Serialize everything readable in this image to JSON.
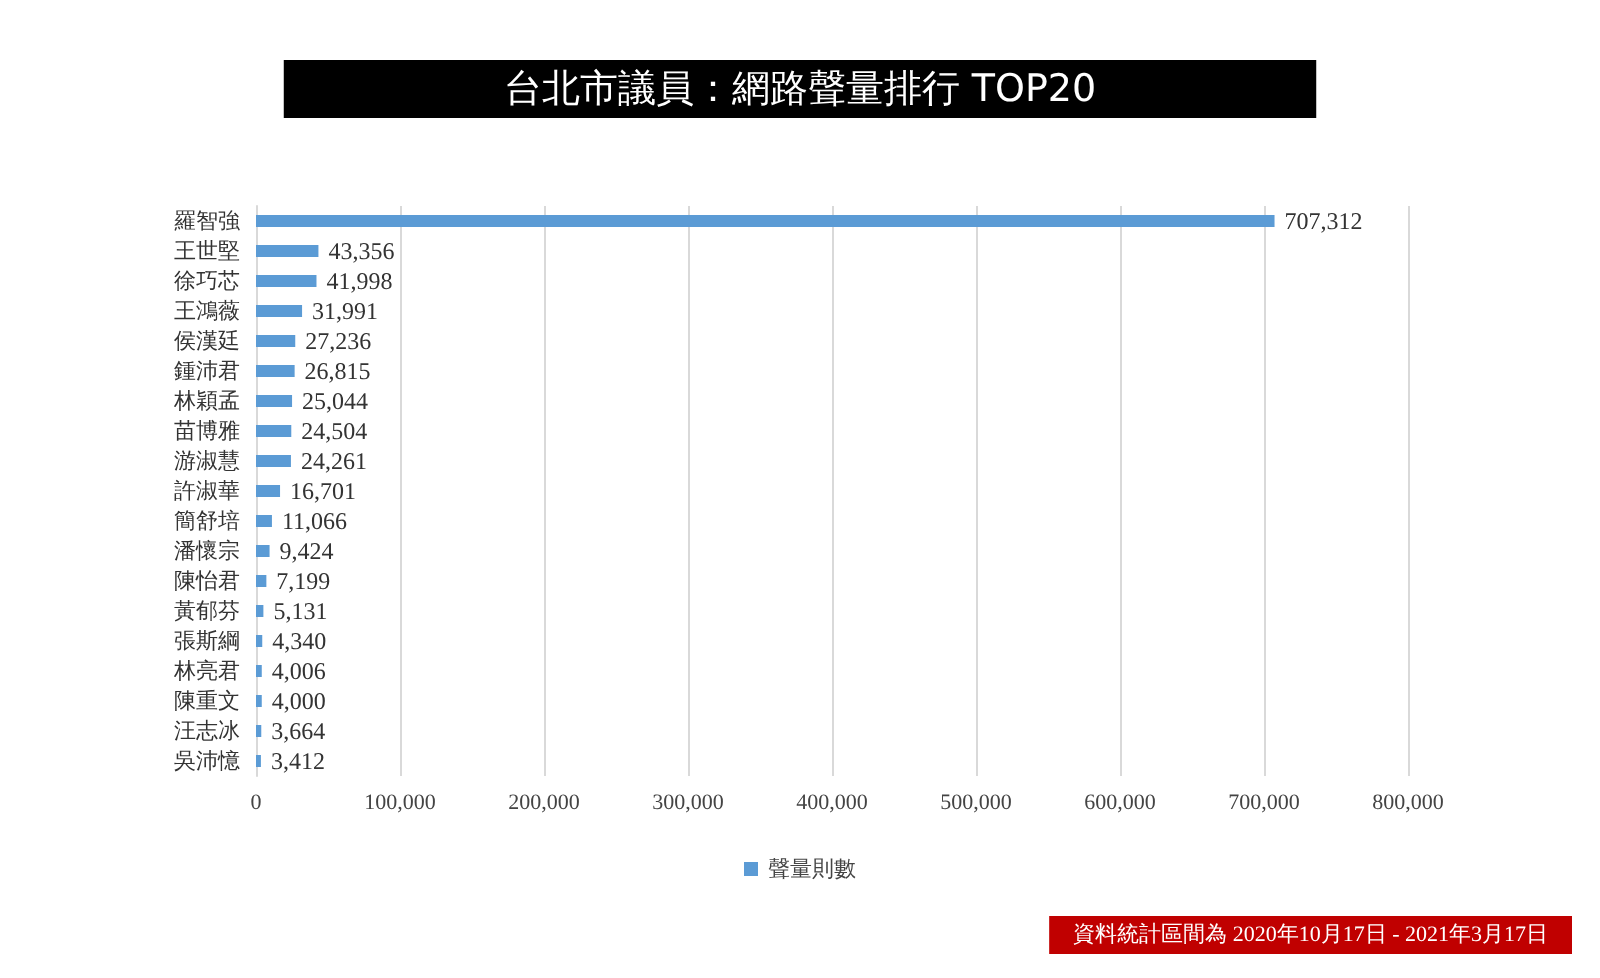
{
  "chart_data": {
    "type": "bar",
    "orientation": "horizontal",
    "title": "台北市議員：網路聲量排行 TOP20",
    "categories": [
      "羅智強",
      "王世堅",
      "徐巧芯",
      "王鴻薇",
      "侯漢廷",
      "鍾沛君",
      "林穎孟",
      "苗博雅",
      "游淑慧",
      "許淑華",
      "簡舒培",
      "潘懷宗",
      "陳怡君",
      "黃郁芬",
      "張斯綱",
      "林亮君",
      "陳重文",
      "汪志冰",
      "吳沛憶"
    ],
    "series": [
      {
        "name": "聲量則數",
        "color": "#5b9bd5",
        "values": [
          707312,
          43356,
          41998,
          31991,
          27236,
          26815,
          25044,
          24504,
          24261,
          16701,
          11066,
          9424,
          7199,
          5131,
          4340,
          4006,
          4000,
          3664,
          3412
        ],
        "value_labels": [
          "707,312",
          "43,356",
          "41,998",
          "31,991",
          "27,236",
          "26,815",
          "25,044",
          "24,504",
          "24,261",
          "16,701",
          "11,066",
          "9,424",
          "7,199",
          "5,131",
          "4,340",
          "4,006",
          "4,000",
          "3,664",
          "3,412"
        ]
      }
    ],
    "xlim": [
      0,
      800000
    ],
    "xticks": [
      0,
      {
        "value": 100000,
        "label": "100,000"
      },
      {
        "value": 200000,
        "label": "200,000"
      },
      {
        "value": 300000,
        "label": "300,000"
      },
      {
        "value": 400000,
        "label": "400,000"
      },
      {
        "value": 500000,
        "label": "500,000"
      },
      {
        "value": 600000,
        "label": "600,000"
      },
      {
        "value": 700000,
        "label": "700,000"
      },
      {
        "value": 800000,
        "label": "800,000"
      }
    ],
    "grid": "x",
    "legend": "bottom",
    "annotations": [
      "資料統計區間為 2020年10月17日 - 2021年3月17日"
    ]
  }
}
